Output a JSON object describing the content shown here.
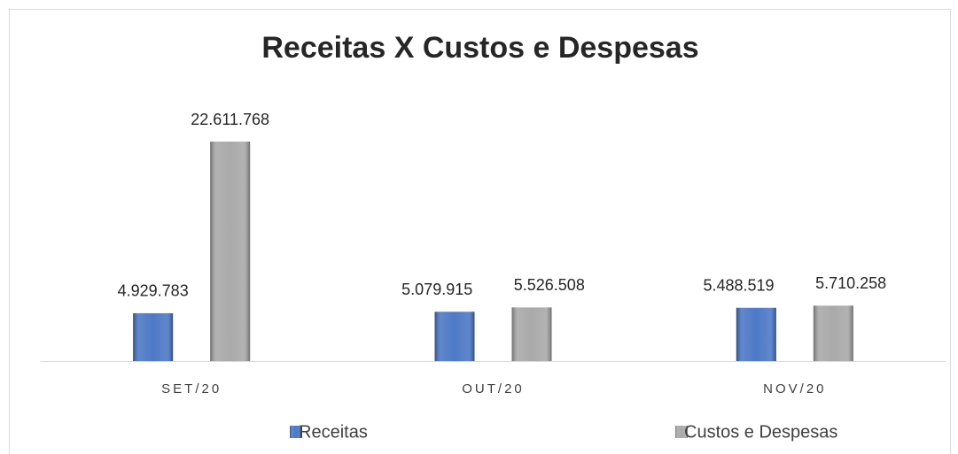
{
  "chart_data": {
    "type": "bar",
    "title": "Receitas X Custos e Despesas",
    "categories": [
      "SET/20",
      "OUT/20",
      "NOV/20"
    ],
    "series": [
      {
        "name": "Receitas",
        "color": "#4472c4",
        "values": [
          4929783,
          5079915,
          5488519
        ],
        "value_labels": [
          "4.929.783",
          "5.079.915",
          "5.488.519"
        ]
      },
      {
        "name": "Custos e Despesas",
        "color": "#a5a5a5",
        "values": [
          22611768,
          5526508,
          5710258
        ],
        "value_labels": [
          "22.611.768",
          "5.526.508",
          "5.710.258"
        ]
      }
    ],
    "legend": "bottom"
  }
}
